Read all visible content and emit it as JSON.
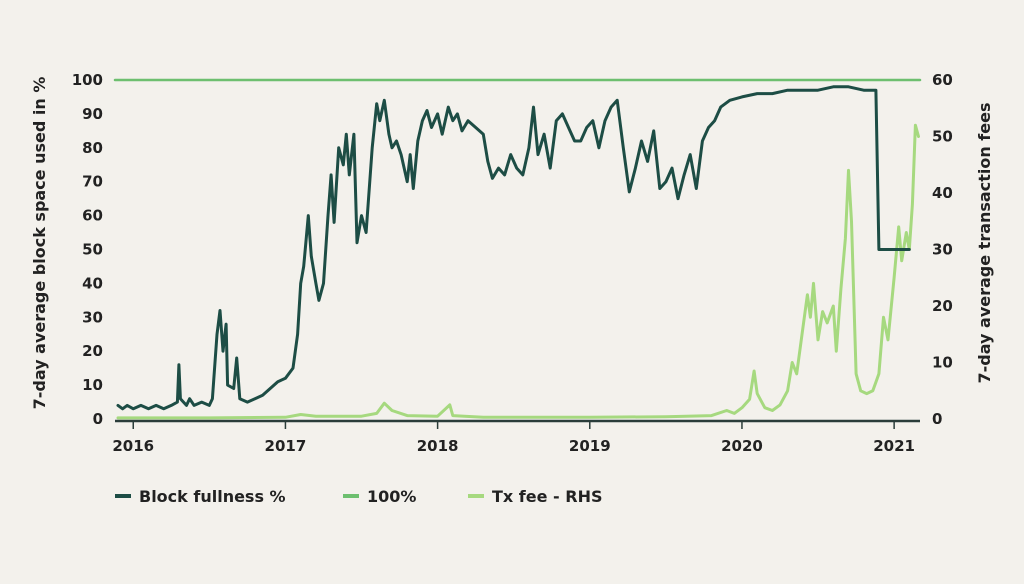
{
  "chart_data": {
    "type": "line",
    "ylabel": "7-day average block space used in %",
    "y2label": "7-day average transaction fees",
    "ylim": [
      0,
      100
    ],
    "y2lim": [
      0,
      60
    ],
    "yticks": [
      "0",
      "10",
      "20",
      "30",
      "40",
      "50",
      "60",
      "70",
      "80",
      "90",
      "100"
    ],
    "y2ticks": [
      "0",
      "10",
      "20",
      "30",
      "40",
      "50",
      "60"
    ],
    "xlim": [
      2015.88,
      2021.17
    ],
    "xticks": [
      {
        "label": "2016",
        "x": 2016
      },
      {
        "label": "2017",
        "x": 2017
      },
      {
        "label": "2018",
        "x": 2018
      },
      {
        "label": "2019",
        "x": 2019
      },
      {
        "label": "2020",
        "x": 2020
      },
      {
        "label": "2021",
        "x": 2021
      }
    ],
    "legend_position": "bottom-left",
    "colors": {
      "block": "#1d4d45",
      "hundred": "#6dbf6f",
      "fee": "#a6d97f"
    },
    "series": [
      {
        "name": "Block fullness %",
        "axis": "left",
        "color": "#1d4d45",
        "points": [
          [
            2015.9,
            4
          ],
          [
            2015.93,
            3
          ],
          [
            2015.96,
            4
          ],
          [
            2016.0,
            3
          ],
          [
            2016.05,
            4
          ],
          [
            2016.1,
            3
          ],
          [
            2016.15,
            4
          ],
          [
            2016.2,
            3
          ],
          [
            2016.25,
            4
          ],
          [
            2016.29,
            5
          ],
          [
            2016.3,
            16
          ],
          [
            2016.31,
            6
          ],
          [
            2016.35,
            4
          ],
          [
            2016.37,
            6
          ],
          [
            2016.4,
            4
          ],
          [
            2016.45,
            5
          ],
          [
            2016.5,
            4
          ],
          [
            2016.52,
            6
          ],
          [
            2016.55,
            25
          ],
          [
            2016.57,
            32
          ],
          [
            2016.59,
            20
          ],
          [
            2016.61,
            28
          ],
          [
            2016.62,
            10
          ],
          [
            2016.66,
            9
          ],
          [
            2016.68,
            18
          ],
          [
            2016.7,
            6
          ],
          [
            2016.75,
            5
          ],
          [
            2016.8,
            6
          ],
          [
            2016.85,
            7
          ],
          [
            2016.9,
            9
          ],
          [
            2016.95,
            11
          ],
          [
            2017.0,
            12
          ],
          [
            2017.05,
            15
          ],
          [
            2017.08,
            25
          ],
          [
            2017.1,
            40
          ],
          [
            2017.12,
            45
          ],
          [
            2017.15,
            60
          ],
          [
            2017.17,
            48
          ],
          [
            2017.2,
            40
          ],
          [
            2017.22,
            35
          ],
          [
            2017.25,
            40
          ],
          [
            2017.28,
            60
          ],
          [
            2017.3,
            72
          ],
          [
            2017.32,
            58
          ],
          [
            2017.35,
            80
          ],
          [
            2017.38,
            75
          ],
          [
            2017.4,
            84
          ],
          [
            2017.42,
            72
          ],
          [
            2017.45,
            84
          ],
          [
            2017.47,
            52
          ],
          [
            2017.5,
            60
          ],
          [
            2017.53,
            55
          ],
          [
            2017.57,
            80
          ],
          [
            2017.6,
            93
          ],
          [
            2017.62,
            88
          ],
          [
            2017.65,
            94
          ],
          [
            2017.68,
            84
          ],
          [
            2017.7,
            80
          ],
          [
            2017.73,
            82
          ],
          [
            2017.76,
            78
          ],
          [
            2017.8,
            70
          ],
          [
            2017.82,
            78
          ],
          [
            2017.84,
            68
          ],
          [
            2017.87,
            82
          ],
          [
            2017.9,
            88
          ],
          [
            2017.93,
            91
          ],
          [
            2017.96,
            86
          ],
          [
            2018.0,
            90
          ],
          [
            2018.03,
            84
          ],
          [
            2018.07,
            92
          ],
          [
            2018.1,
            88
          ],
          [
            2018.13,
            90
          ],
          [
            2018.16,
            85
          ],
          [
            2018.2,
            88
          ],
          [
            2018.25,
            86
          ],
          [
            2018.3,
            84
          ],
          [
            2018.33,
            76
          ],
          [
            2018.36,
            71
          ],
          [
            2018.4,
            74
          ],
          [
            2018.44,
            72
          ],
          [
            2018.48,
            78
          ],
          [
            2018.52,
            74
          ],
          [
            2018.56,
            72
          ],
          [
            2018.6,
            80
          ],
          [
            2018.63,
            92
          ],
          [
            2018.66,
            78
          ],
          [
            2018.7,
            84
          ],
          [
            2018.74,
            74
          ],
          [
            2018.78,
            88
          ],
          [
            2018.82,
            90
          ],
          [
            2018.86,
            86
          ],
          [
            2018.9,
            82
          ],
          [
            2018.94,
            82
          ],
          [
            2018.98,
            86
          ],
          [
            2019.02,
            88
          ],
          [
            2019.06,
            80
          ],
          [
            2019.1,
            88
          ],
          [
            2019.14,
            92
          ],
          [
            2019.18,
            94
          ],
          [
            2019.22,
            80
          ],
          [
            2019.26,
            67
          ],
          [
            2019.3,
            74
          ],
          [
            2019.34,
            82
          ],
          [
            2019.38,
            76
          ],
          [
            2019.42,
            85
          ],
          [
            2019.46,
            68
          ],
          [
            2019.5,
            70
          ],
          [
            2019.54,
            74
          ],
          [
            2019.58,
            65
          ],
          [
            2019.62,
            72
          ],
          [
            2019.66,
            78
          ],
          [
            2019.7,
            68
          ],
          [
            2019.74,
            82
          ],
          [
            2019.78,
            86
          ],
          [
            2019.82,
            88
          ],
          [
            2019.86,
            92
          ],
          [
            2019.92,
            94
          ],
          [
            2020.0,
            95
          ],
          [
            2020.1,
            96
          ],
          [
            2020.2,
            96
          ],
          [
            2020.3,
            97
          ],
          [
            2020.4,
            97
          ],
          [
            2020.5,
            97
          ],
          [
            2020.6,
            98
          ],
          [
            2020.7,
            98
          ],
          [
            2020.8,
            97
          ],
          [
            2020.85,
            97
          ],
          [
            2020.88,
            97
          ],
          [
            2020.9,
            50
          ],
          [
            2021.0,
            50
          ],
          [
            2021.1,
            50
          ]
        ]
      },
      {
        "name": "100%",
        "axis": "left",
        "color": "#6dbf6f",
        "points": [
          [
            2015.88,
            100
          ],
          [
            2021.17,
            100
          ]
        ]
      },
      {
        "name": "Tx fee - RHS",
        "axis": "right",
        "color": "#a6d97f",
        "points": [
          [
            2015.9,
            0.2
          ],
          [
            2016.5,
            0.2
          ],
          [
            2017.0,
            0.3
          ],
          [
            2017.1,
            0.8
          ],
          [
            2017.2,
            0.5
          ],
          [
            2017.5,
            0.5
          ],
          [
            2017.6,
            1.0
          ],
          [
            2017.65,
            2.8
          ],
          [
            2017.7,
            1.5
          ],
          [
            2017.8,
            0.6
          ],
          [
            2018.0,
            0.5
          ],
          [
            2018.08,
            2.5
          ],
          [
            2018.1,
            0.6
          ],
          [
            2018.3,
            0.3
          ],
          [
            2019.0,
            0.3
          ],
          [
            2019.5,
            0.4
          ],
          [
            2019.8,
            0.6
          ],
          [
            2019.9,
            1.5
          ],
          [
            2019.95,
            1.0
          ],
          [
            2020.0,
            2.0
          ],
          [
            2020.05,
            3.5
          ],
          [
            2020.08,
            8.5
          ],
          [
            2020.1,
            4.5
          ],
          [
            2020.15,
            2.0
          ],
          [
            2020.2,
            1.5
          ],
          [
            2020.25,
            2.5
          ],
          [
            2020.3,
            5.0
          ],
          [
            2020.33,
            10.0
          ],
          [
            2020.36,
            8.0
          ],
          [
            2020.4,
            16.0
          ],
          [
            2020.43,
            22.0
          ],
          [
            2020.45,
            18.0
          ],
          [
            2020.47,
            24.0
          ],
          [
            2020.5,
            14.0
          ],
          [
            2020.53,
            19.0
          ],
          [
            2020.56,
            17.0
          ],
          [
            2020.6,
            20.0
          ],
          [
            2020.62,
            12.0
          ],
          [
            2020.65,
            23.0
          ],
          [
            2020.68,
            32.0
          ],
          [
            2020.7,
            44.0
          ],
          [
            2020.72,
            35.0
          ],
          [
            2020.75,
            8.0
          ],
          [
            2020.78,
            5.0
          ],
          [
            2020.82,
            4.5
          ],
          [
            2020.86,
            5.0
          ],
          [
            2020.9,
            8.0
          ],
          [
            2020.93,
            18.0
          ],
          [
            2020.96,
            14.0
          ],
          [
            2021.0,
            25.0
          ],
          [
            2021.03,
            34.0
          ],
          [
            2021.05,
            28.0
          ],
          [
            2021.08,
            33.0
          ],
          [
            2021.1,
            30.0
          ],
          [
            2021.12,
            38.0
          ],
          [
            2021.14,
            52.0
          ],
          [
            2021.16,
            50.0
          ]
        ]
      }
    ]
  }
}
